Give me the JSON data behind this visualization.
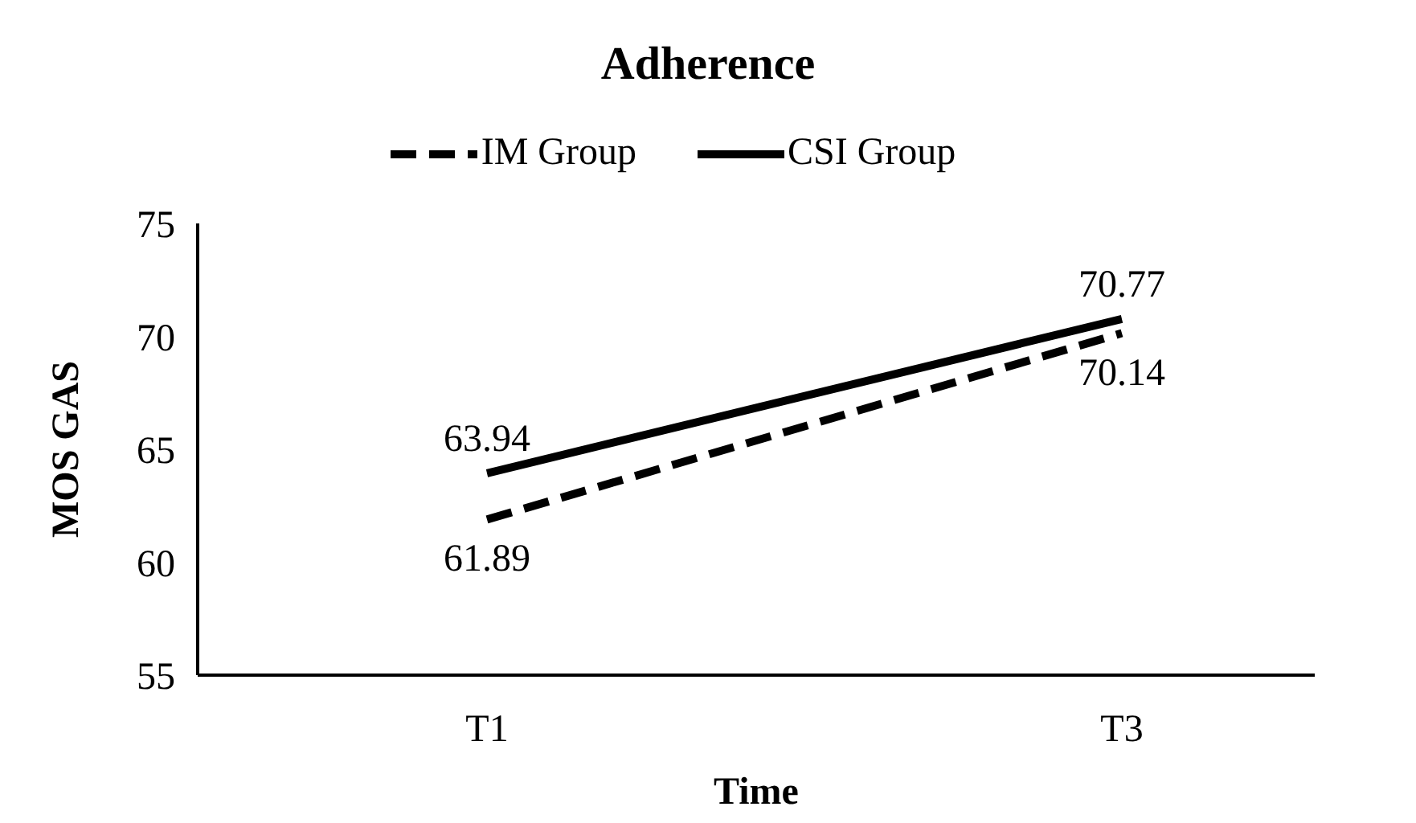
{
  "chart_data": {
    "type": "line",
    "title": "Adherence",
    "xlabel": "Time",
    "ylabel": "MOS GAS",
    "categories": [
      "T1",
      "T3"
    ],
    "series": [
      {
        "name": "IM Group",
        "color": "#000000",
        "line_style": "dashed",
        "values": [
          61.89,
          70.14
        ]
      },
      {
        "name": "CSI Group",
        "color": "#000000",
        "line_style": "solid",
        "values": [
          63.94,
          70.77
        ]
      }
    ],
    "ylim": [
      55,
      75
    ],
    "yticks": [
      55,
      60,
      65,
      70,
      75
    ],
    "grid": false,
    "legend": "top",
    "marker": "none",
    "data_labels": true
  }
}
